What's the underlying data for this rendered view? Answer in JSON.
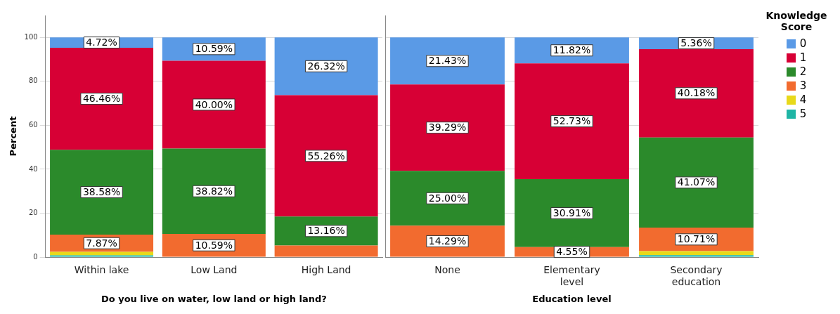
{
  "chart_data": [
    {
      "type": "bar",
      "stacked": true,
      "ylabel": "Percent",
      "xlabel": "Do you live on water, low land or high land?",
      "categories": [
        "Within lake",
        "Low Land",
        "High Land"
      ],
      "ylim": [
        0,
        110
      ],
      "yticks": [
        0,
        20,
        40,
        60,
        80,
        100
      ],
      "grid": "y",
      "legend": false,
      "series": [
        {
          "color": "#1fb5a5",
          "values": [
            0.8,
            0,
            0
          ],
          "value_labels": [
            null,
            null,
            null
          ]
        },
        {
          "color": "#e8d91a",
          "values": [
            1.6,
            0,
            0
          ],
          "value_labels": [
            null,
            null,
            null
          ]
        },
        {
          "color": "#f26b2f",
          "values": [
            7.87,
            10.59,
            5.3
          ],
          "value_labels": [
            "7.87%",
            "10.59%",
            null
          ]
        },
        {
          "color": "#2b8a2b",
          "values": [
            38.58,
            38.82,
            13.16
          ],
          "value_labels": [
            "38.58%",
            "38.82%",
            "13.16%"
          ]
        },
        {
          "color": "#d70035",
          "values": [
            46.46,
            40.0,
            55.26
          ],
          "value_labels": [
            "46.46%",
            "40.00%",
            "55.26%"
          ]
        },
        {
          "color": "#5a9ae6",
          "values": [
            4.72,
            10.59,
            26.32
          ],
          "value_labels": [
            "4.72%",
            "10.59%",
            "26.32%"
          ]
        }
      ]
    },
    {
      "type": "bar",
      "stacked": true,
      "xlabel": "Education level",
      "categories": [
        "None",
        "Elementary level",
        "Secondary education"
      ],
      "ylim": [
        0,
        110
      ],
      "yticks": [
        0,
        20,
        40,
        60,
        80,
        100
      ],
      "tick_labels": "x",
      "grid": "y",
      "legend": "right",
      "legend_title": "Knowledge Score",
      "series": [
        {
          "name": "5",
          "color": "#1fb5a5",
          "values": [
            0,
            0,
            0.9
          ],
          "value_labels": [
            null,
            null,
            null
          ]
        },
        {
          "name": "4",
          "color": "#e8d91a",
          "values": [
            0,
            0,
            1.8
          ],
          "value_labels": [
            null,
            null,
            null
          ]
        },
        {
          "name": "3",
          "color": "#f26b2f",
          "values": [
            14.29,
            4.55,
            10.71
          ],
          "value_labels": [
            "14.29%",
            "4.55%",
            "10.71%"
          ]
        },
        {
          "name": "2",
          "color": "#2b8a2b",
          "values": [
            25.0,
            30.91,
            41.07
          ],
          "value_labels": [
            "25.00%",
            "30.91%",
            "41.07%"
          ]
        },
        {
          "name": "1",
          "color": "#d70035",
          "values": [
            39.29,
            52.73,
            40.18
          ],
          "value_labels": [
            "39.29%",
            "52.73%",
            "40.18%"
          ]
        },
        {
          "name": "0",
          "color": "#5a9ae6",
          "values": [
            21.43,
            11.82,
            5.36
          ],
          "value_labels": [
            "21.43%",
            "11.82%",
            "5.36%"
          ]
        }
      ]
    }
  ]
}
